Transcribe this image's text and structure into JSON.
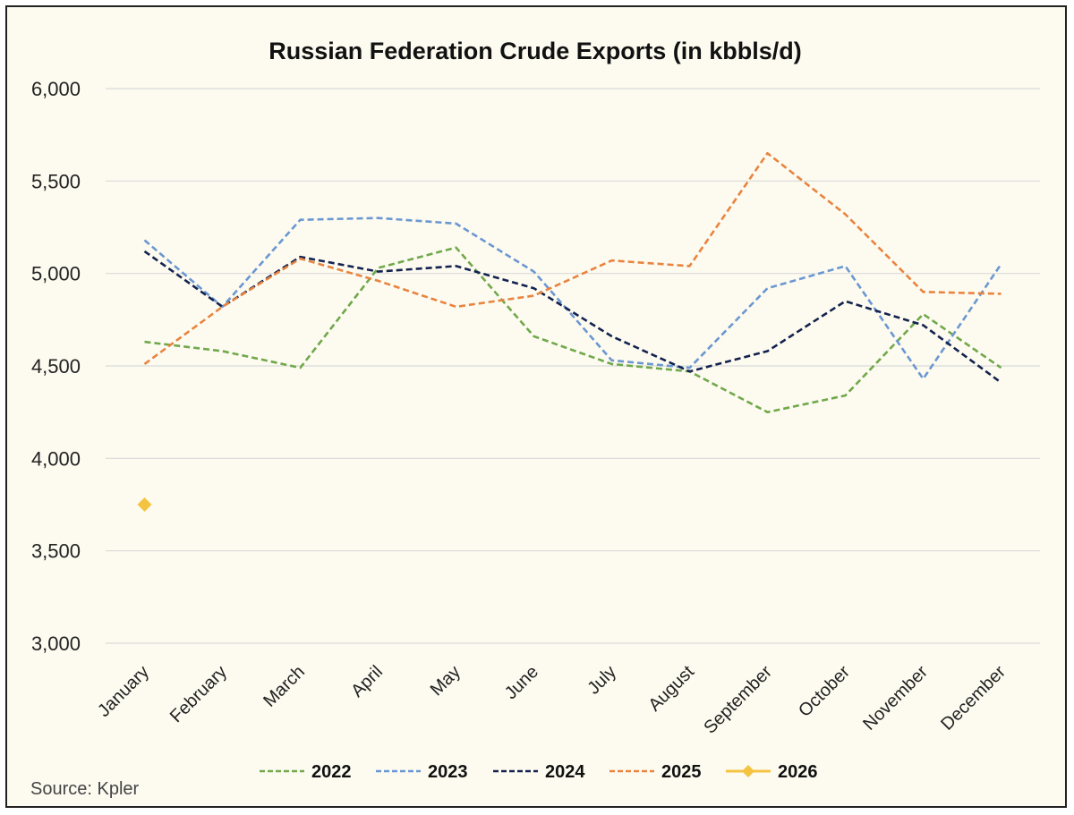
{
  "chart_data": {
    "type": "line",
    "title": "Russian Federation Crude Exports (in kbbls/d)",
    "source": "Source: Kpler",
    "ylim": [
      3000,
      6000
    ],
    "yticks": [
      3000,
      3500,
      4000,
      4500,
      5000,
      5500,
      6000
    ],
    "ytick_labels": [
      "3,000",
      "3,500",
      "4,000",
      "4,500",
      "5,000",
      "5,500",
      "6,000"
    ],
    "categories": [
      "January",
      "February",
      "March",
      "April",
      "May",
      "June",
      "July",
      "August",
      "September",
      "October",
      "November",
      "December"
    ],
    "grid": "horizontal",
    "legend_position": "bottom",
    "series": [
      {
        "name": "2022",
        "color": "#70a84a",
        "style": "dashed",
        "values": [
          4630,
          4580,
          4490,
          5030,
          5140,
          4660,
          4510,
          4470,
          4250,
          4340,
          4780,
          4490
        ]
      },
      {
        "name": "2023",
        "color": "#6b97d1",
        "style": "dashed",
        "values": [
          5180,
          4820,
          5290,
          5300,
          5270,
          5010,
          4530,
          4490,
          4920,
          5040,
          4430,
          5050
        ]
      },
      {
        "name": "2024",
        "color": "#14224f",
        "style": "dashed",
        "values": [
          5120,
          4820,
          5090,
          5010,
          5040,
          4920,
          4660,
          4470,
          4580,
          4850,
          4720,
          4410
        ]
      },
      {
        "name": "2025",
        "color": "#e8843f",
        "style": "dashed",
        "values": [
          4510,
          4820,
          5080,
          4960,
          4820,
          4880,
          5070,
          5040,
          5650,
          5320,
          4900,
          4890
        ]
      },
      {
        "name": "2026",
        "color": "#f5c342",
        "style": "marker",
        "values": [
          3750,
          null,
          null,
          null,
          null,
          null,
          null,
          null,
          null,
          null,
          null,
          null
        ]
      }
    ]
  }
}
